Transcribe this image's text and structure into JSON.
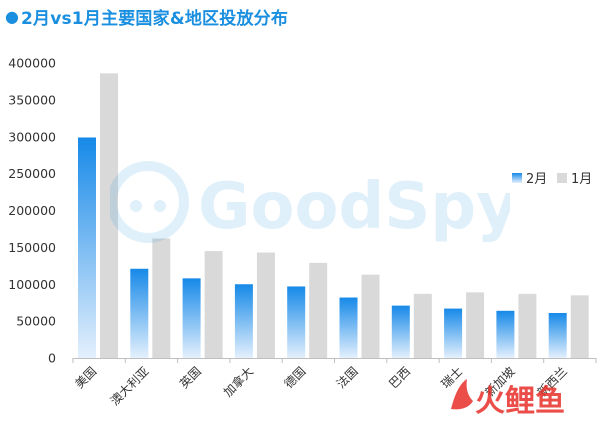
{
  "title": "2月vs1月主要国家&地区投放分布",
  "title_bullet": "●",
  "colors": {
    "series_feb_top": "#1689e8",
    "series_feb_bottom": "#e4f0fd",
    "series_jan": "#d9d9d9",
    "title": "#1a8fe0",
    "axis": "#bfbfbf",
    "text": "#333333"
  },
  "watermark": {
    "text": "GoodSpy",
    "icon": "goodspy-logo-icon"
  },
  "corner_logo": {
    "text": "火鲤鱼",
    "icon": "koi-logo-icon"
  },
  "chart_data": {
    "type": "bar",
    "title": "2月vs1月主要国家&地区投放分布",
    "xlabel": "",
    "ylabel": "",
    "ylim": [
      0,
      400000
    ],
    "yticks": [
      0,
      50000,
      100000,
      150000,
      200000,
      250000,
      300000,
      350000,
      400000
    ],
    "categories": [
      "美国",
      "澳大利亚",
      "英国",
      "加拿大",
      "德国",
      "法国",
      "巴西",
      "瑞士",
      "新加坡",
      "新西兰"
    ],
    "series": [
      {
        "name": "2月",
        "values": [
          299000,
          121000,
          108000,
          100000,
          97000,
          82000,
          71000,
          67000,
          64000,
          61000
        ]
      },
      {
        "name": "1月",
        "values": [
          386000,
          162000,
          145000,
          143000,
          129000,
          113000,
          87000,
          89000,
          87000,
          85000
        ]
      }
    ],
    "legend_position": "right",
    "grid": false
  }
}
